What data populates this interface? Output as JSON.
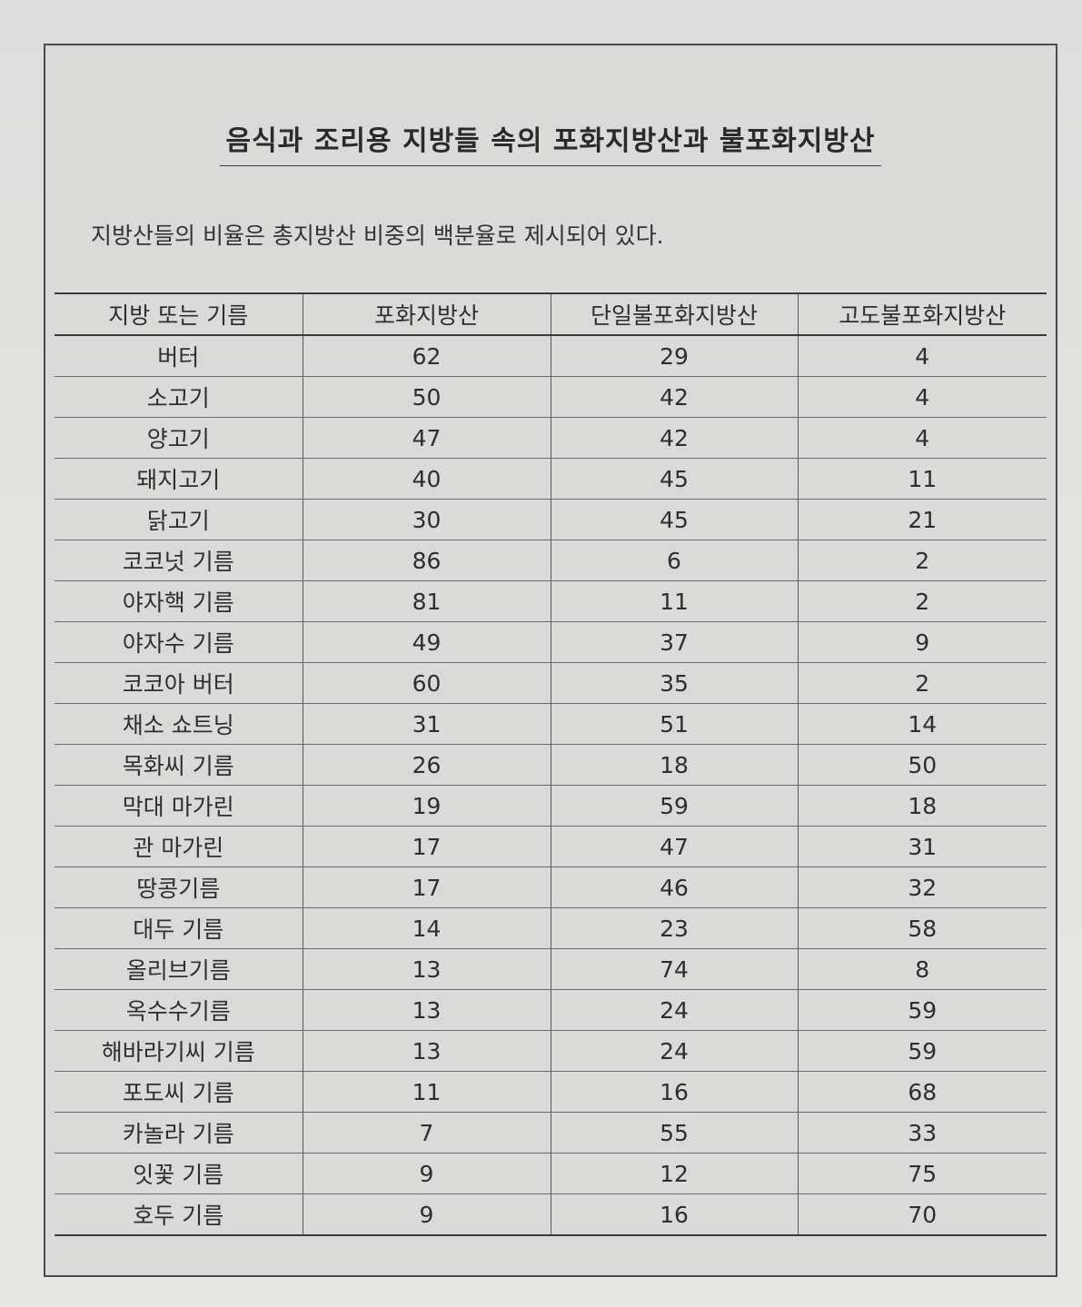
{
  "title": "음식과 조리용 지방들 속의 포화지방산과 불포화지방산",
  "subtitle": "지방산들의 비율은 총지방산 비중의 백분율로 제시되어 있다.",
  "table": {
    "headers": [
      "지방 또는 기름",
      "포화지방산",
      "단일불포화지방산",
      "고도불포화지방산"
    ],
    "rows": [
      [
        "버터",
        "62",
        "29",
        "4"
      ],
      [
        "소고기",
        "50",
        "42",
        "4"
      ],
      [
        "양고기",
        "47",
        "42",
        "4"
      ],
      [
        "돼지고기",
        "40",
        "45",
        "11"
      ],
      [
        "닭고기",
        "30",
        "45",
        "21"
      ],
      [
        "코코넛 기름",
        "86",
        "6",
        "2"
      ],
      [
        "야자핵 기름",
        "81",
        "11",
        "2"
      ],
      [
        "야자수 기름",
        "49",
        "37",
        "9"
      ],
      [
        "코코아 버터",
        "60",
        "35",
        "2"
      ],
      [
        "채소 쇼트닝",
        "31",
        "51",
        "14"
      ],
      [
        "목화씨 기름",
        "26",
        "18",
        "50"
      ],
      [
        "막대 마가린",
        "19",
        "59",
        "18"
      ],
      [
        "관 마가린",
        "17",
        "47",
        "31"
      ],
      [
        "땅콩기름",
        "17",
        "46",
        "32"
      ],
      [
        "대두 기름",
        "14",
        "23",
        "58"
      ],
      [
        "올리브기름",
        "13",
        "74",
        "8"
      ],
      [
        "옥수수기름",
        "13",
        "24",
        "59"
      ],
      [
        "해바라기씨 기름",
        "13",
        "24",
        "59"
      ],
      [
        "포도씨 기름",
        "11",
        "16",
        "68"
      ],
      [
        "카놀라 기름",
        "7",
        "55",
        "33"
      ],
      [
        "잇꽃 기름",
        "9",
        "12",
        "75"
      ],
      [
        "호두 기름",
        "9",
        "16",
        "70"
      ]
    ]
  }
}
